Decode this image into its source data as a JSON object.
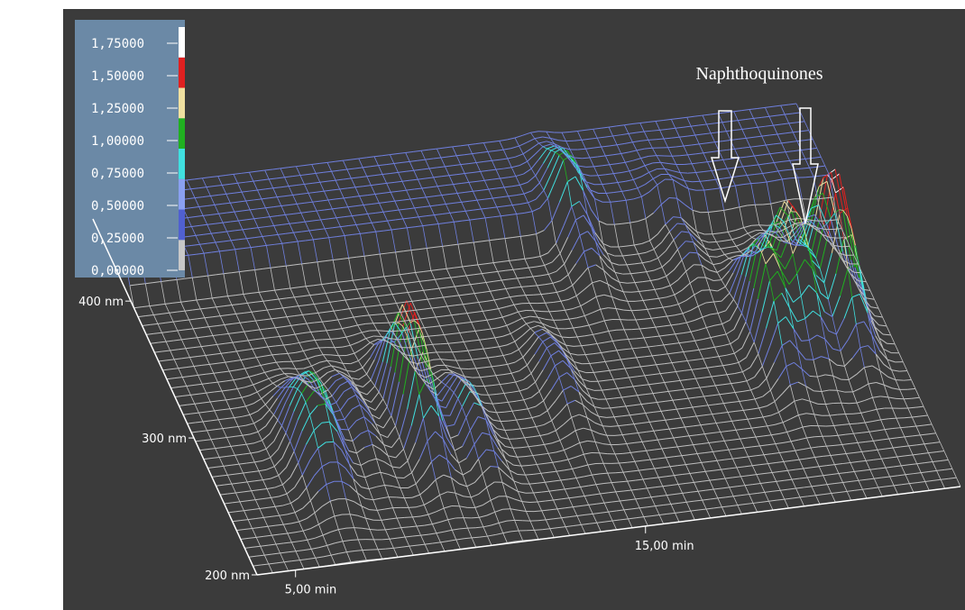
{
  "chart_data": {
    "type": "surface3d",
    "annotation": "Naphthoquinones",
    "colorbar": {
      "lim": [
        0,
        1.875
      ],
      "ticks": [
        {
          "value": 1.75,
          "label": "1,75000"
        },
        {
          "value": 1.5,
          "label": "1,50000"
        },
        {
          "value": 1.25,
          "label": "1,25000"
        },
        {
          "value": 1.0,
          "label": "1,00000"
        },
        {
          "value": 0.75,
          "label": "0,75000"
        },
        {
          "value": 0.5,
          "label": "0,50000"
        },
        {
          "value": 0.25,
          "label": "0,25000"
        },
        {
          "value": 0.0,
          "label": "0,00000"
        }
      ],
      "colors": [
        "#c8c8c8",
        "#5060d0",
        "#8aa0f0",
        "#40e0e0",
        "#20b020",
        "#f0e0a0",
        "#e02020",
        "#ffffff"
      ]
    },
    "xlim": [
      3.9,
      24
    ],
    "xticks": [
      {
        "value": 5,
        "label": "5,00 min"
      },
      {
        "value": 15,
        "label": "15,00 min"
      }
    ],
    "ylim": [
      200,
      460
    ],
    "yticks": [
      {
        "value": 200,
        "label": "200 nm"
      },
      {
        "value": 300,
        "label": "300 nm"
      },
      {
        "value": 400,
        "label": "400 nm"
      }
    ]
  }
}
